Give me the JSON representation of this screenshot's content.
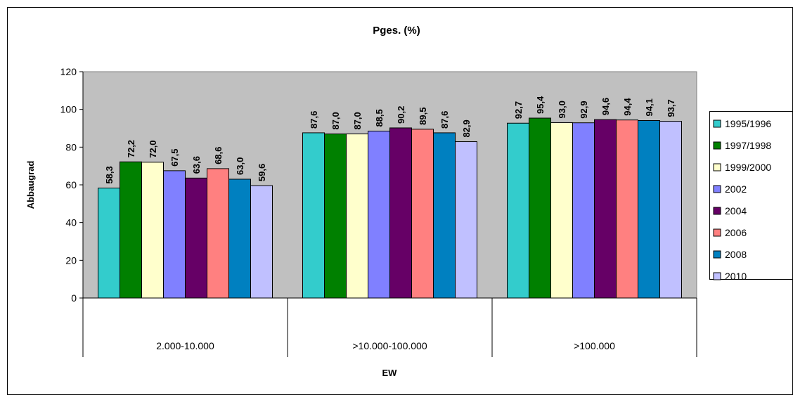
{
  "chart_data": {
    "type": "bar",
    "title": "Pges. (%)",
    "xlabel": "EW",
    "ylabel": "Abbaugrad",
    "ylim": [
      0,
      120
    ],
    "yticks": [
      0,
      20,
      40,
      60,
      80,
      100,
      120
    ],
    "categories": [
      "2.000-10.000",
      ">10.000-100.000",
      ">100.000"
    ],
    "series": [
      {
        "name": "1995/1996",
        "color": "#33CCCC",
        "values": [
          58.3,
          87.6,
          92.7
        ],
        "labels": [
          "58,3",
          "87,6",
          "92,7"
        ]
      },
      {
        "name": "1997/1998",
        "color": "#008000",
        "values": [
          72.2,
          87.0,
          95.4
        ],
        "labels": [
          "72,2",
          "87,0",
          "95,4"
        ]
      },
      {
        "name": "1999/2000",
        "color": "#FFFFCC",
        "values": [
          72.0,
          87.0,
          93.0
        ],
        "labels": [
          "72,0",
          "87,0",
          "93,0"
        ]
      },
      {
        "name": "2002",
        "color": "#8080FF",
        "values": [
          67.5,
          88.5,
          92.9
        ],
        "labels": [
          "67,5",
          "88,5",
          "92,9"
        ]
      },
      {
        "name": "2004",
        "color": "#660066",
        "values": [
          63.6,
          90.2,
          94.6
        ],
        "labels": [
          "63,6",
          "90,2",
          "94,6"
        ]
      },
      {
        "name": "2006",
        "color": "#FF8080",
        "values": [
          68.6,
          89.5,
          94.4
        ],
        "labels": [
          "68,6",
          "89,5",
          "94,4"
        ]
      },
      {
        "name": "2008",
        "color": "#0080C0",
        "values": [
          63.0,
          87.6,
          94.1
        ],
        "labels": [
          "63,0",
          "87,6",
          "94,1"
        ]
      },
      {
        "name": "2010",
        "color": "#C0C0FF",
        "values": [
          59.6,
          82.9,
          93.7
        ],
        "labels": [
          "59,6",
          "82,9",
          "93,7"
        ]
      }
    ],
    "plot_background": "#C0C0C0",
    "legend_position": "right",
    "grid": false
  }
}
